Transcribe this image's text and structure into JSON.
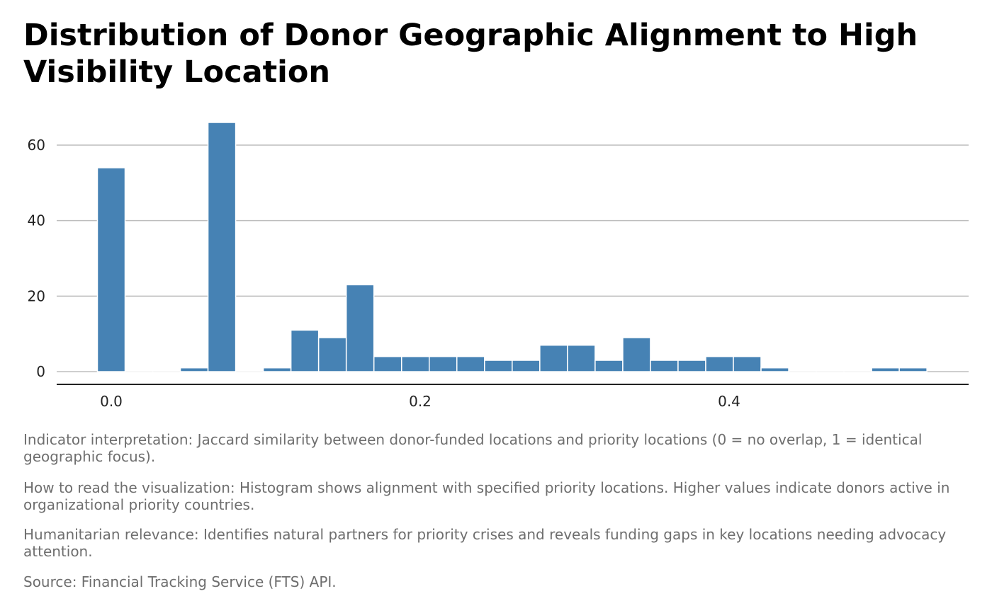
{
  "chart_data": {
    "type": "bar",
    "title": "Distribution of Donor Geographic Alignment to High Visibility Location",
    "xlabel": "",
    "ylabel": "",
    "bin_width": 0.0179,
    "bin_centers": [
      0.0,
      0.0179,
      0.0358,
      0.0537,
      0.0716,
      0.0895,
      0.1074,
      0.1253,
      0.1432,
      0.1611,
      0.179,
      0.1969,
      0.2148,
      0.2327,
      0.2506,
      0.2685,
      0.2864,
      0.3043,
      0.3222,
      0.3401,
      0.358,
      0.3759,
      0.3938,
      0.4117,
      0.4296,
      0.4475,
      0.4654,
      0.4833,
      0.5012,
      0.5191
    ],
    "values": [
      54,
      0,
      0,
      1,
      66,
      0,
      1,
      11,
      9,
      23,
      4,
      4,
      4,
      4,
      3,
      3,
      7,
      7,
      3,
      9,
      3,
      3,
      4,
      4,
      1,
      0,
      0,
      0,
      1,
      1
    ],
    "xlim": [
      -0.0353,
      0.555
    ],
    "ylim": [
      0,
      70
    ],
    "xticks": [
      0.0,
      0.2,
      0.4
    ],
    "xtick_labels": [
      "0.0",
      "0.2",
      "0.4"
    ],
    "yticks": [
      0,
      20,
      40,
      60
    ],
    "ytick_labels": [
      "0",
      "20",
      "40",
      "60"
    ],
    "grid": "horizontal",
    "bar_color": "#4682b4"
  },
  "captions": [
    "Indicator interpretation: Jaccard similarity between donor-funded locations and priority locations (0 = no overlap, 1 = identical geographic focus).",
    "How to read the visualization: Histogram shows alignment with specified priority locations. Higher values indicate donors active in organizational priority countries.",
    "Humanitarian relevance: Identifies natural partners for priority crises and reveals funding gaps in key locations needing advocacy attention.",
    "Source: Financial Tracking Service (FTS) API."
  ]
}
